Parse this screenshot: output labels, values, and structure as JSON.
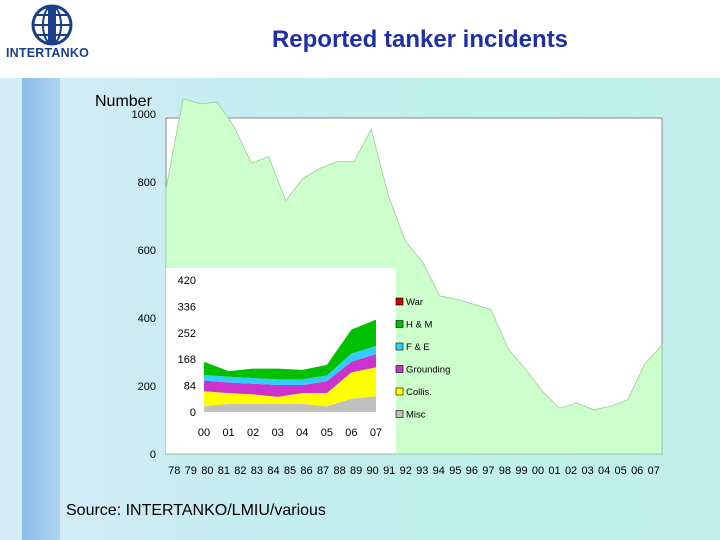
{
  "header": {
    "logo_text": "INTERTANKO",
    "title": "Reported tanker incidents"
  },
  "source": "Source: INTERTANKO/LMIU/various",
  "colors": {
    "main_fill": "#ccffcc",
    "plot_bg": "#ffffff",
    "war": "#cc0000",
    "hm": "#00c000",
    "fe": "#33ccff",
    "grounding": "#cc33cc",
    "collis": "#ffff00",
    "misc": "#c0c0c0"
  },
  "chart_data": [
    {
      "type": "area",
      "ylabel": "Number",
      "ylim": [
        0,
        1000
      ],
      "yticks": [
        "0",
        "200",
        "400",
        "600",
        "800",
        "1000"
      ],
      "categories": [
        "78",
        "79",
        "80",
        "81",
        "82",
        "83",
        "84",
        "85",
        "86",
        "87",
        "88",
        "89",
        "90",
        "91",
        "92",
        "93",
        "94",
        "95",
        "96",
        "97",
        "98",
        "99",
        "00",
        "01",
        "02",
        "03",
        "04",
        "05",
        "06",
        "07"
      ],
      "values": [
        780,
        1045,
        1030,
        1035,
        960,
        855,
        875,
        745,
        810,
        840,
        860,
        860,
        955,
        760,
        625,
        565,
        465,
        455,
        440,
        425,
        310,
        250,
        185,
        135,
        150,
        130,
        140,
        160,
        265,
        320
      ],
      "grid": false
    },
    {
      "type": "area",
      "stacked": true,
      "categories": [
        "00",
        "01",
        "02",
        "03",
        "04",
        "05",
        "06",
        "07"
      ],
      "yticks": [
        "0",
        "84",
        "168",
        "252",
        "336",
        "420"
      ],
      "ylim": [
        0,
        420
      ],
      "legend": [
        "War",
        "H & M",
        "F & E",
        "Grounding",
        "Collis.",
        "Misc"
      ],
      "legend_position": "right",
      "series": [
        {
          "name": "Misc",
          "values": [
            18,
            26,
            26,
            26,
            26,
            18,
            42,
            50
          ]
        },
        {
          "name": "Collis.",
          "values": [
            48,
            34,
            30,
            22,
            34,
            42,
            84,
            92
          ]
        },
        {
          "name": "Grounding",
          "values": [
            34,
            34,
            34,
            38,
            26,
            38,
            34,
            42
          ]
        },
        {
          "name": "F & E",
          "values": [
            18,
            18,
            18,
            18,
            18,
            18,
            26,
            26
          ]
        },
        {
          "name": "H & M",
          "values": [
            42,
            18,
            30,
            34,
            30,
            34,
            76,
            84
          ]
        },
        {
          "name": "War",
          "values": [
            0,
            0,
            0,
            0,
            0,
            0,
            0,
            0
          ]
        }
      ]
    }
  ]
}
